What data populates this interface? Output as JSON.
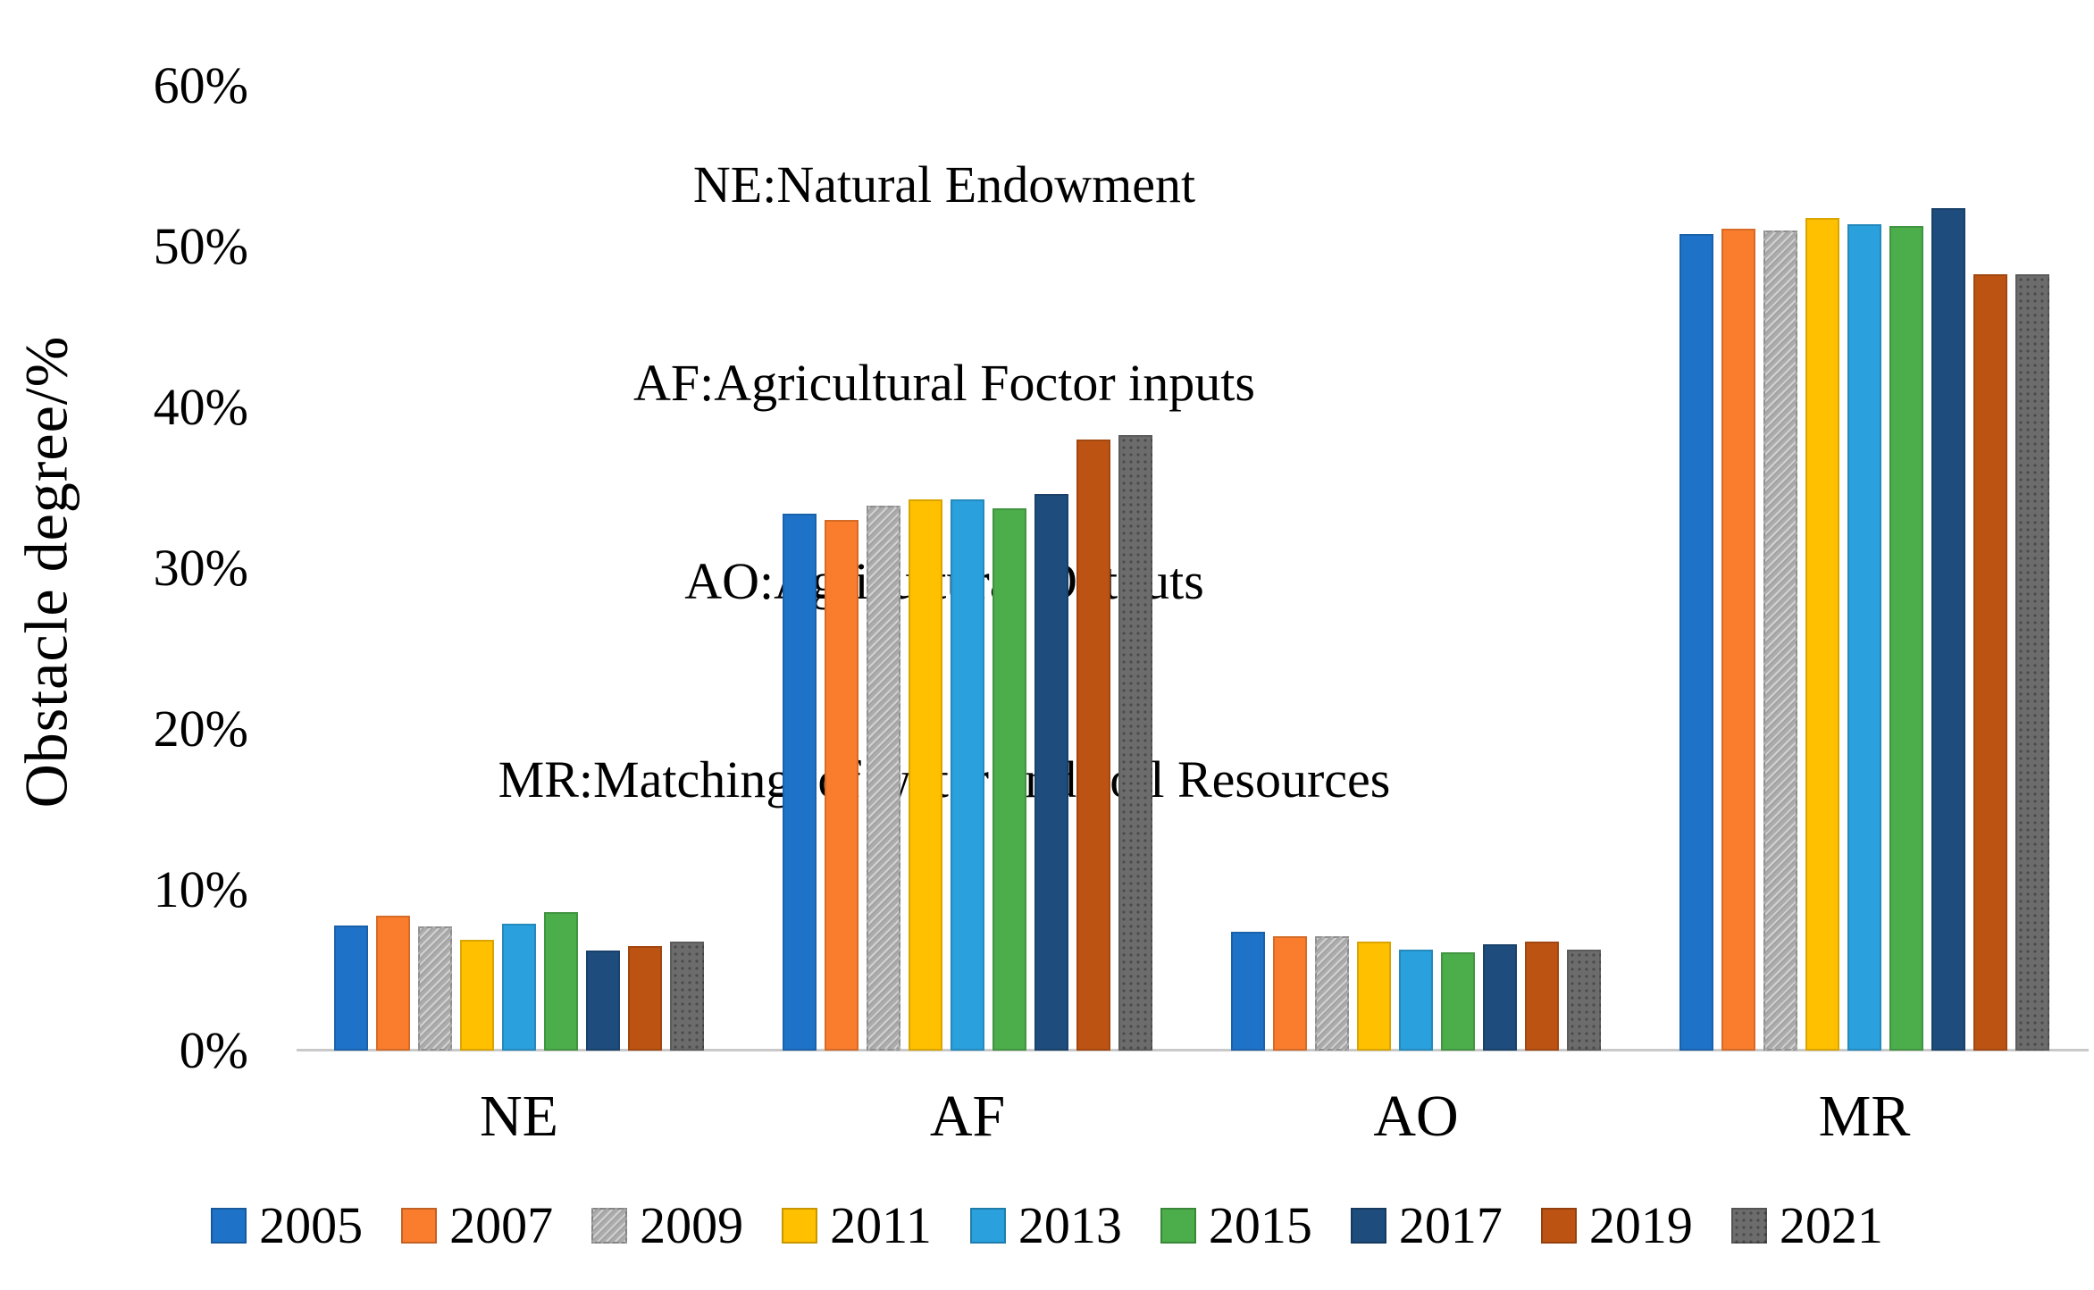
{
  "annotation": {
    "lines": [
      "NE:Natural Endowment",
      "AF:Agricultural Foctor inputs",
      "AO:Agricultural Outputs",
      "MR:Matching  of water and soil Resources"
    ]
  },
  "chart_data": {
    "type": "bar",
    "title": "",
    "ylabel": "Obstacle degree/%",
    "xlabel": "",
    "ylim": [
      0,
      60
    ],
    "grid": false,
    "legend_position": "bottom",
    "yticks": [
      "0%",
      "10%",
      "20%",
      "30%",
      "40%",
      "50%",
      "60%"
    ],
    "categories": [
      "NE",
      "AF",
      "AO",
      "MR"
    ],
    "series": [
      {
        "name": "2005",
        "color": "#1E73C8",
        "pattern": "none",
        "values": [
          7.8,
          33.4,
          7.4,
          50.8
        ]
      },
      {
        "name": "2007",
        "color": "#F97D2D",
        "pattern": "none",
        "values": [
          8.4,
          33.0,
          7.1,
          51.1
        ]
      },
      {
        "name": "2009",
        "color": "#ACACAC",
        "pattern": "diagonal",
        "values": [
          7.7,
          33.9,
          7.1,
          51.0
        ]
      },
      {
        "name": "2011",
        "color": "#FFC000",
        "pattern": "none",
        "values": [
          6.9,
          34.3,
          6.8,
          51.8
        ]
      },
      {
        "name": "2013",
        "color": "#2AA0DC",
        "pattern": "none",
        "values": [
          7.9,
          34.3,
          6.3,
          51.4
        ]
      },
      {
        "name": "2015",
        "color": "#4CAD4B",
        "pattern": "none",
        "values": [
          8.6,
          33.7,
          6.1,
          51.3
        ]
      },
      {
        "name": "2017",
        "color": "#1E4C7C",
        "pattern": "none",
        "values": [
          6.2,
          34.6,
          6.6,
          52.4
        ]
      },
      {
        "name": "2019",
        "color": "#BD5313",
        "pattern": "none",
        "values": [
          6.5,
          38.0,
          6.8,
          48.3
        ]
      },
      {
        "name": "2021",
        "color": "#6C6C6C",
        "pattern": "dots",
        "values": [
          6.8,
          38.3,
          6.3,
          48.3
        ]
      }
    ]
  }
}
